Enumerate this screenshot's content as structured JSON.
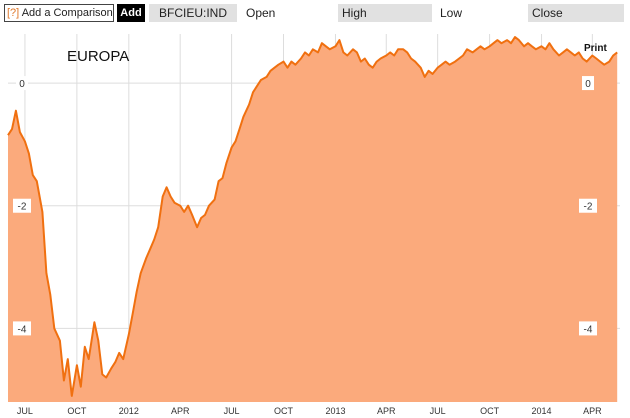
{
  "toolbar": {
    "help_glyph": "[?]",
    "compare_label": "Add a Comparison",
    "add_label": "Add",
    "ticker": "BFCIEU:IND",
    "open_label": "Open",
    "high_label": "High",
    "low_label": "Low",
    "close_label": "Close"
  },
  "print_label": "Print",
  "colors": {
    "fill": "#fbaa7c",
    "line": "#f07010",
    "grid": "#dddddd"
  },
  "chart_data": {
    "type": "area",
    "title": "EUROPA",
    "xlabel": "",
    "ylabel": "",
    "ylim": [
      -5.2,
      0.8
    ],
    "yticks": [
      0,
      -2,
      -4
    ],
    "ytick_labels": [
      "0",
      "-2",
      "-4"
    ],
    "x_tick_labels": [
      "JUL",
      "OCT",
      "2012",
      "APR",
      "JUL",
      "OCT",
      "2013",
      "APR",
      "JUL",
      "OCT",
      "2014",
      "APR"
    ],
    "grid": true,
    "series": [
      {
        "points": [
          [
            "2011-06-01",
            -0.85
          ],
          [
            "2011-06-08",
            -0.75
          ],
          [
            "2011-06-15",
            -0.45
          ],
          [
            "2011-06-22",
            -0.8
          ],
          [
            "2011-07-01",
            -0.95
          ],
          [
            "2011-07-08",
            -1.15
          ],
          [
            "2011-07-15",
            -1.5
          ],
          [
            "2011-07-22",
            -1.6
          ],
          [
            "2011-08-01",
            -2.1
          ],
          [
            "2011-08-08",
            -3.1
          ],
          [
            "2011-08-15",
            -3.45
          ],
          [
            "2011-08-22",
            -4.0
          ],
          [
            "2011-09-01",
            -4.2
          ],
          [
            "2011-09-08",
            -4.85
          ],
          [
            "2011-09-15",
            -4.5
          ],
          [
            "2011-09-22",
            -5.1
          ],
          [
            "2011-10-01",
            -4.6
          ],
          [
            "2011-10-08",
            -4.95
          ],
          [
            "2011-10-15",
            -4.3
          ],
          [
            "2011-10-22",
            -4.5
          ],
          [
            "2011-11-01",
            -3.9
          ],
          [
            "2011-11-08",
            -4.2
          ],
          [
            "2011-11-15",
            -4.75
          ],
          [
            "2011-11-22",
            -4.8
          ],
          [
            "2011-12-01",
            -4.65
          ],
          [
            "2011-12-08",
            -4.55
          ],
          [
            "2011-12-15",
            -4.4
          ],
          [
            "2011-12-22",
            -4.5
          ],
          [
            "2012-01-01",
            -4.1
          ],
          [
            "2012-01-08",
            -3.75
          ],
          [
            "2012-01-15",
            -3.4
          ],
          [
            "2012-01-22",
            -3.1
          ],
          [
            "2012-02-01",
            -2.85
          ],
          [
            "2012-02-08",
            -2.7
          ],
          [
            "2012-02-15",
            -2.55
          ],
          [
            "2012-02-22",
            -2.35
          ],
          [
            "2012-03-01",
            -1.85
          ],
          [
            "2012-03-08",
            -1.7
          ],
          [
            "2012-03-15",
            -1.85
          ],
          [
            "2012-03-22",
            -1.95
          ],
          [
            "2012-04-01",
            -2.0
          ],
          [
            "2012-04-08",
            -2.1
          ],
          [
            "2012-04-15",
            -2.0
          ],
          [
            "2012-04-22",
            -2.15
          ],
          [
            "2012-05-01",
            -2.35
          ],
          [
            "2012-05-08",
            -2.2
          ],
          [
            "2012-05-15",
            -2.15
          ],
          [
            "2012-05-22",
            -2.0
          ],
          [
            "2012-06-01",
            -1.9
          ],
          [
            "2012-06-08",
            -1.6
          ],
          [
            "2012-06-15",
            -1.55
          ],
          [
            "2012-06-22",
            -1.3
          ],
          [
            "2012-07-01",
            -1.05
          ],
          [
            "2012-07-08",
            -0.95
          ],
          [
            "2012-07-15",
            -0.75
          ],
          [
            "2012-07-22",
            -0.55
          ],
          [
            "2012-08-01",
            -0.35
          ],
          [
            "2012-08-08",
            -0.15
          ],
          [
            "2012-08-15",
            -0.05
          ],
          [
            "2012-08-22",
            0.05
          ],
          [
            "2012-09-01",
            0.1
          ],
          [
            "2012-09-08",
            0.2
          ],
          [
            "2012-09-15",
            0.25
          ],
          [
            "2012-09-22",
            0.3
          ],
          [
            "2012-10-01",
            0.35
          ],
          [
            "2012-10-08",
            0.25
          ],
          [
            "2012-10-15",
            0.35
          ],
          [
            "2012-10-22",
            0.3
          ],
          [
            "2012-11-01",
            0.4
          ],
          [
            "2012-11-08",
            0.5
          ],
          [
            "2012-11-15",
            0.45
          ],
          [
            "2012-11-22",
            0.55
          ],
          [
            "2012-12-01",
            0.5
          ],
          [
            "2012-12-08",
            0.65
          ],
          [
            "2012-12-15",
            0.6
          ],
          [
            "2012-12-22",
            0.55
          ],
          [
            "2013-01-01",
            0.6
          ],
          [
            "2013-01-08",
            0.7
          ],
          [
            "2013-01-15",
            0.5
          ],
          [
            "2013-01-22",
            0.45
          ],
          [
            "2013-02-01",
            0.55
          ],
          [
            "2013-02-08",
            0.5
          ],
          [
            "2013-02-15",
            0.35
          ],
          [
            "2013-02-22",
            0.4
          ],
          [
            "2013-03-01",
            0.3
          ],
          [
            "2013-03-08",
            0.25
          ],
          [
            "2013-03-15",
            0.35
          ],
          [
            "2013-03-22",
            0.4
          ],
          [
            "2013-04-01",
            0.45
          ],
          [
            "2013-04-08",
            0.5
          ],
          [
            "2013-04-15",
            0.45
          ],
          [
            "2013-04-22",
            0.55
          ],
          [
            "2013-05-01",
            0.55
          ],
          [
            "2013-05-08",
            0.5
          ],
          [
            "2013-05-15",
            0.4
          ],
          [
            "2013-05-22",
            0.35
          ],
          [
            "2013-06-01",
            0.25
          ],
          [
            "2013-06-08",
            0.1
          ],
          [
            "2013-06-15",
            0.2
          ],
          [
            "2013-06-22",
            0.15
          ],
          [
            "2013-07-01",
            0.25
          ],
          [
            "2013-07-08",
            0.3
          ],
          [
            "2013-07-15",
            0.35
          ],
          [
            "2013-07-22",
            0.3
          ],
          [
            "2013-08-01",
            0.35
          ],
          [
            "2013-08-08",
            0.4
          ],
          [
            "2013-08-15",
            0.45
          ],
          [
            "2013-08-22",
            0.55
          ],
          [
            "2013-09-01",
            0.5
          ],
          [
            "2013-09-08",
            0.55
          ],
          [
            "2013-09-15",
            0.6
          ],
          [
            "2013-09-22",
            0.55
          ],
          [
            "2013-10-01",
            0.6
          ],
          [
            "2013-10-08",
            0.65
          ],
          [
            "2013-10-15",
            0.7
          ],
          [
            "2013-10-22",
            0.65
          ],
          [
            "2013-11-01",
            0.7
          ],
          [
            "2013-11-08",
            0.65
          ],
          [
            "2013-11-15",
            0.75
          ],
          [
            "2013-11-22",
            0.7
          ],
          [
            "2013-12-01",
            0.6
          ],
          [
            "2013-12-08",
            0.65
          ],
          [
            "2013-12-15",
            0.6
          ],
          [
            "2013-12-22",
            0.55
          ],
          [
            "2014-01-01",
            0.6
          ],
          [
            "2014-01-08",
            0.55
          ],
          [
            "2014-01-15",
            0.65
          ],
          [
            "2014-01-22",
            0.55
          ],
          [
            "2014-02-01",
            0.45
          ],
          [
            "2014-02-08",
            0.5
          ],
          [
            "2014-02-15",
            0.55
          ],
          [
            "2014-02-22",
            0.5
          ],
          [
            "2014-03-01",
            0.45
          ],
          [
            "2014-03-08",
            0.5
          ],
          [
            "2014-03-15",
            0.4
          ],
          [
            "2014-03-22",
            0.35
          ],
          [
            "2014-04-01",
            0.45
          ],
          [
            "2014-04-08",
            0.4
          ],
          [
            "2014-04-15",
            0.35
          ],
          [
            "2014-04-22",
            0.3
          ],
          [
            "2014-05-01",
            0.35
          ],
          [
            "2014-05-08",
            0.45
          ],
          [
            "2014-05-15",
            0.5
          ]
        ]
      }
    ]
  }
}
